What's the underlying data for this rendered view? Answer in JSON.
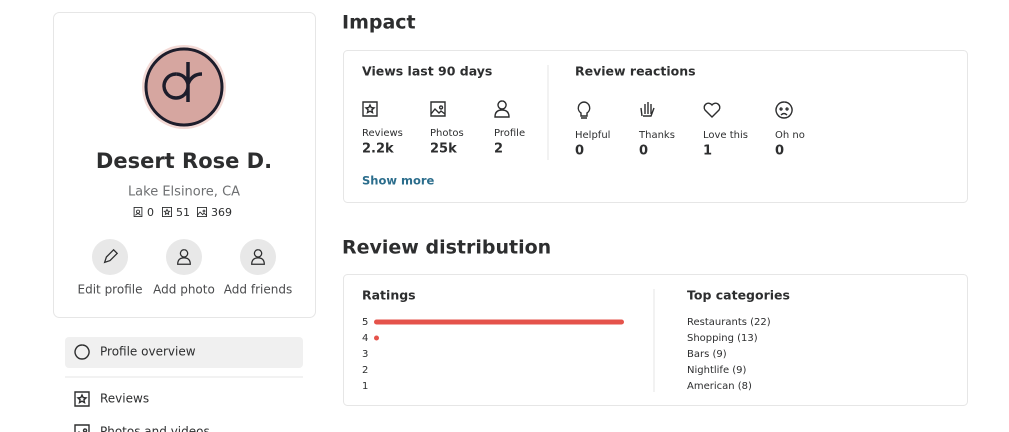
{
  "profile": {
    "name": "Desert Rose D.",
    "location": "Lake Elsinore, CA",
    "stats": [
      0,
      51,
      369
    ]
  },
  "actions": [
    "Edit profile",
    "Add photo",
    "Add friends"
  ],
  "nav": [
    "Profile overview",
    "Reviews",
    "Photos and videos"
  ],
  "impact": {
    "title": "Impact",
    "views": {
      "title": "Views last 90 days",
      "items": [
        {
          "label": "Reviews",
          "value": "2.2k"
        },
        {
          "label": "Photos",
          "value": "25k"
        },
        {
          "label": "Profile",
          "value": 2
        }
      ]
    },
    "reactions": {
      "title": "Review reactions",
      "items": [
        {
          "label": "Helpful",
          "value": 0
        },
        {
          "label": "Thanks",
          "value": 0
        },
        {
          "label": "Love this",
          "value": 1
        },
        {
          "label": "Oh no",
          "value": 0
        }
      ]
    },
    "show_more": "Show more"
  },
  "distribution": {
    "title": "Review distribution",
    "ratings": {
      "title": "Ratings",
      "labels": [
        5,
        4,
        3,
        2,
        1
      ],
      "values": [
        50,
        1,
        0,
        0,
        0
      ],
      "color": "#e5534b"
    },
    "top_categories": {
      "title": "Top categories",
      "items": [
        "Restaurants (22)",
        "Shopping (13)",
        "Bars (9)",
        "Nightlife (9)",
        "American (8)"
      ]
    }
  }
}
